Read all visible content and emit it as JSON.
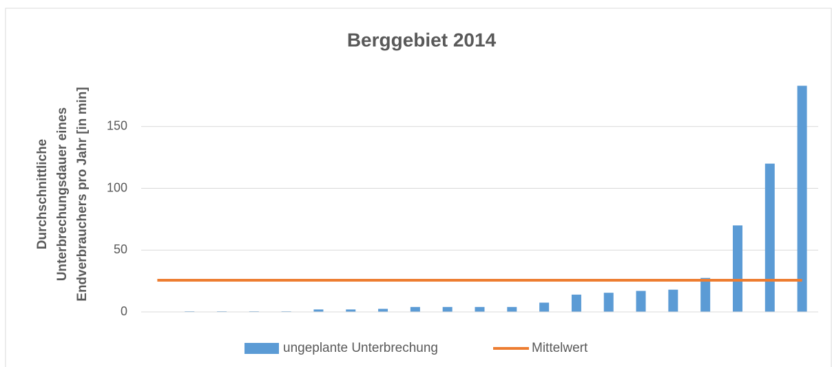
{
  "chart_data": {
    "type": "bar",
    "title": "Berggebiet 2014",
    "y_label": [
      "Durchschnittliche",
      "Unterbrechungsdauer eines",
      "Endverbrauchers pro Jahr [in min]"
    ],
    "categories": [
      null,
      null,
      null,
      null,
      null,
      null,
      null,
      null,
      null,
      null,
      null,
      null,
      null,
      null,
      null,
      null,
      null,
      null,
      null,
      null,
      null
    ],
    "series": [
      {
        "name": "ungeplante Unterbrechung",
        "type": "bar",
        "color": "#5b9bd5",
        "values": [
          null,
          0.5,
          0.5,
          0.5,
          0.5,
          2,
          2,
          2.5,
          4,
          4,
          4,
          4,
          7.5,
          14,
          15.5,
          17,
          18,
          27.5,
          70,
          120,
          183
        ]
      },
      {
        "name": "Mittelwert",
        "type": "line",
        "color": "#ed7d31",
        "values": [
          25.6,
          25.6,
          25.6,
          25.6,
          25.6,
          25.6,
          25.6,
          25.6,
          25.6,
          25.6,
          25.6,
          25.6,
          25.6,
          25.6,
          25.6,
          25.6,
          25.6,
          25.6,
          25.6,
          25.6,
          25.6
        ]
      }
    ],
    "ylim": [
      0,
      190
    ],
    "yticks": [
      0,
      50,
      100,
      150
    ],
    "grid": true,
    "legend": "bottom"
  }
}
